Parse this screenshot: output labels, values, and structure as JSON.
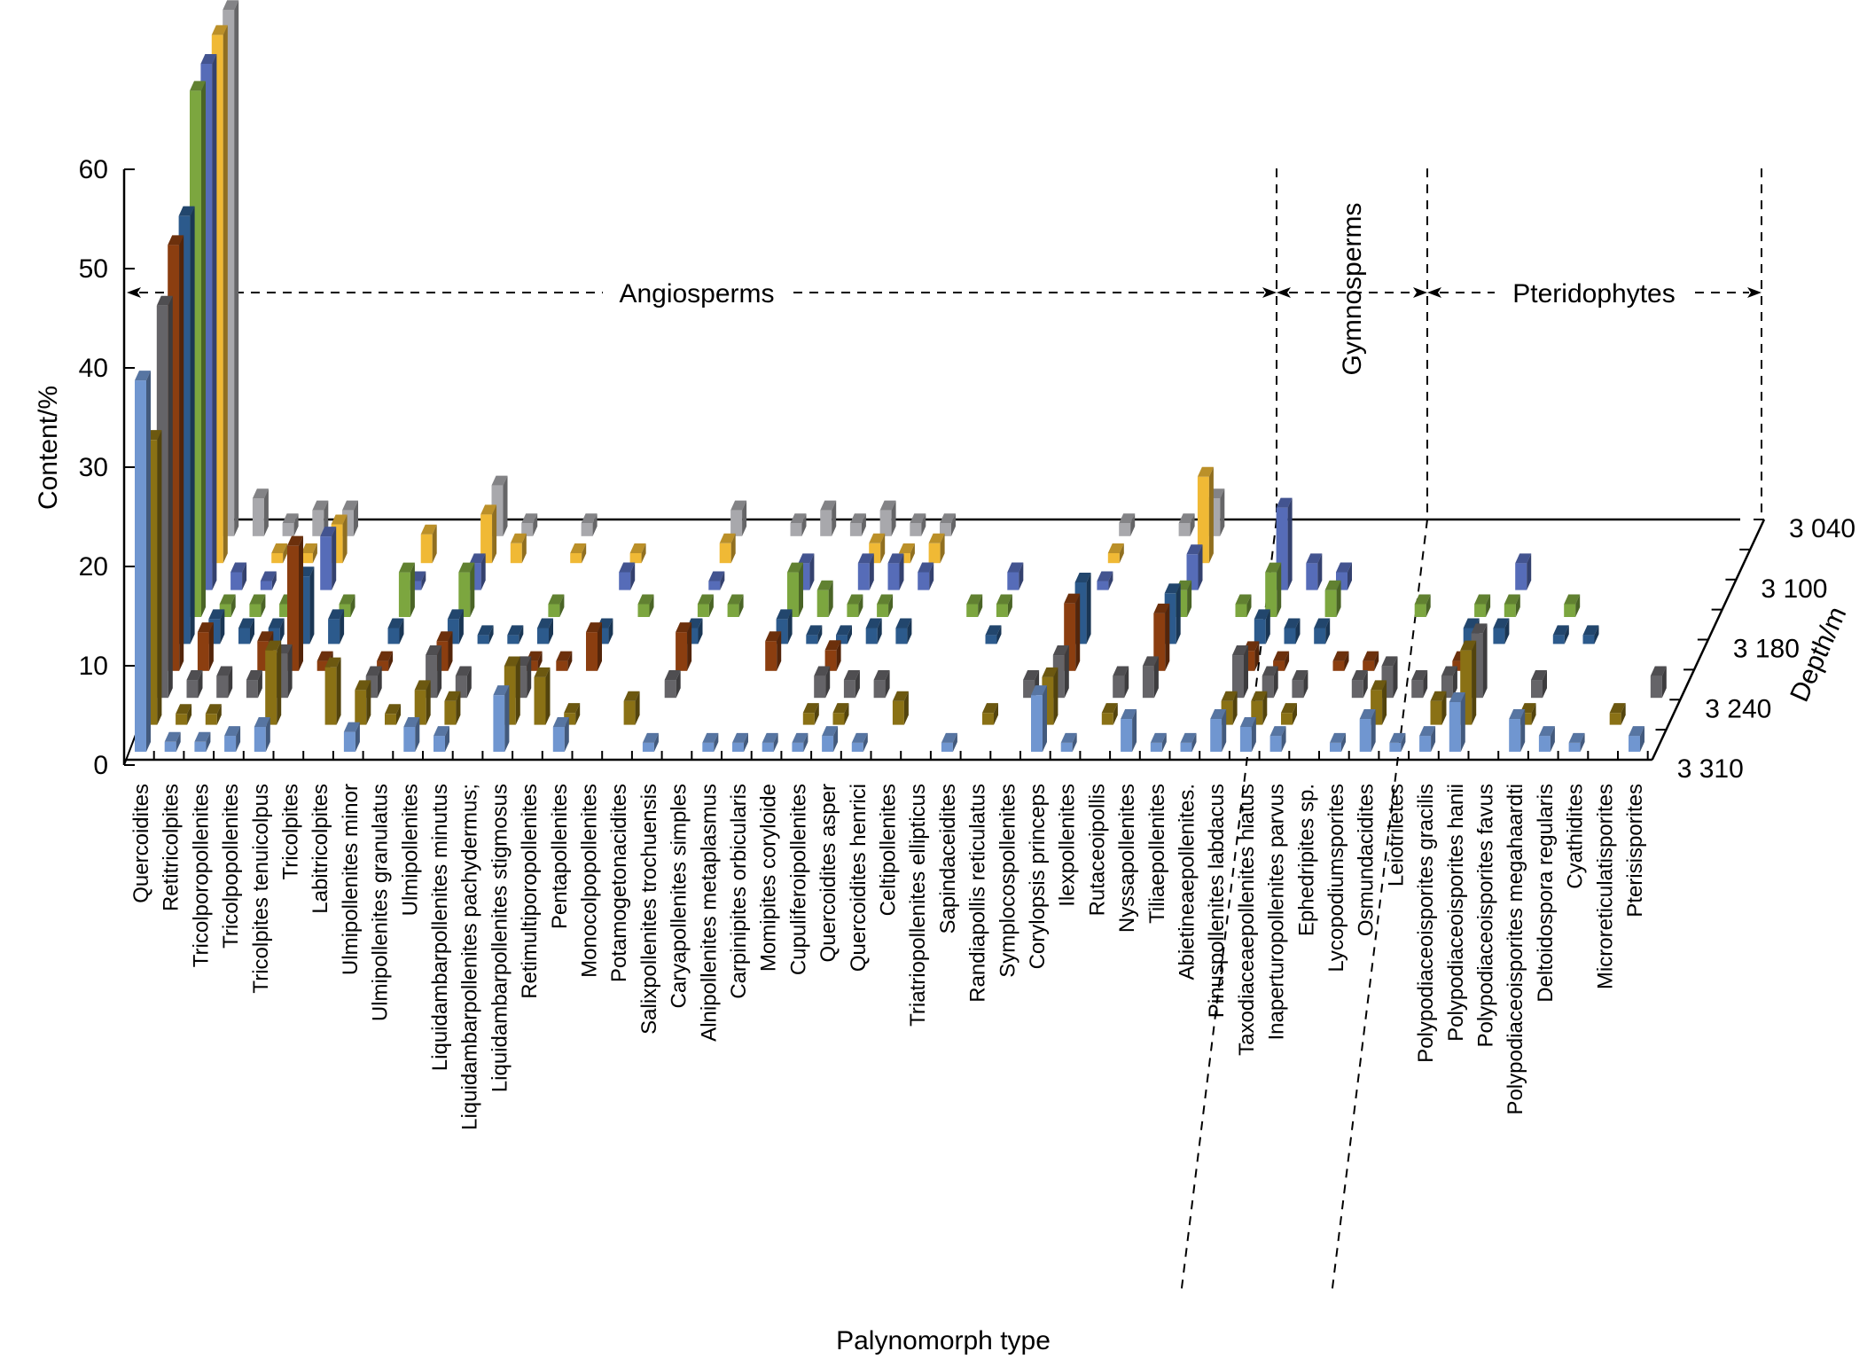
{
  "chart_data": {
    "type": "bar3d",
    "xlabel": "Palynomorph type",
    "ylabel": "Content/%",
    "zlabel": "Depth/m",
    "ylim": [
      0,
      60
    ],
    "yticks": [
      "0",
      "10",
      "20",
      "30",
      "40",
      "50",
      "60"
    ],
    "depth_tick_labels": [
      "3 040",
      "3 100",
      "3 180",
      "3 240",
      "3 310"
    ],
    "grid": false,
    "categories": [
      "Quercoidites",
      "Retitricolpites",
      "Tricolporopollenites",
      "Tricolpopollenites",
      "Tricolpites tenuicolpus",
      "Tricolpites",
      "Labitricolpites",
      "Ulmipollenites minor",
      "Ulmipollenites granulatus",
      "Ulmipollenites",
      "Liquidambarpollenites minutus",
      "Liquidambarpollenites pachydermus;",
      "Liquidambarpollenites stigmosus",
      "Retimultiporopollenites",
      "Pentapollenites",
      "Monocolpopollenites",
      "Potamogetonacidites",
      "Salixpollenites trochuensis",
      "Caryapollenites simples",
      "Alnipollenites metaplasmus",
      "Carpinipites orbicularis",
      "Momipites coryloide",
      "Cupuliferoipollenites",
      "Quercoidites asper",
      "Quercoidites henrici",
      "Celtipollenites",
      "Triatriopollenites ellipticus",
      "Sapindaceidites",
      "Randiapollis reticulatus",
      "Symplocospollenites",
      "Corylopsis princeps",
      "Ilexpollenites",
      "Rutaceoipollis",
      "Nyssapollenites",
      "Tiliaepollenites",
      "Abietineaepollenites.",
      "Pinuspollenites labdacus",
      "Taxodiaceaepollenites hiatus",
      "Inaperturopollenites parvus",
      "Ephedripites sp.",
      "Lycopodiumsporites",
      "Osmundacidites",
      "Leiotriletes",
      "Polypodiaceoisporites gracilis",
      "Polypodiaceoisporites hanii",
      "Polypodiaceoisporites favus",
      "Polypodiaceoisporites megahaardti",
      "Deltoidospora regularis",
      "Cyathidites",
      "Microreticulatisporites",
      "Pterisisporites"
    ],
    "groups": [
      {
        "label": "Angiosperms",
        "start": 0,
        "end": 34
      },
      {
        "label": "Gymnosperms",
        "start": 35,
        "end": 39
      },
      {
        "label": "Pteridophytes",
        "start": 40,
        "end": 50
      }
    ],
    "series_order": "front-to-back (deepest sample in front)",
    "series": [
      {
        "color": "#7096d0",
        "values": [
          37.4,
          1,
          1,
          1.6,
          2.5,
          0,
          0,
          2,
          0,
          2.5,
          1.6,
          0,
          5.7,
          0,
          2.5,
          0,
          0,
          0.9,
          0,
          0.9,
          0.9,
          0.9,
          0.9,
          1.6,
          0.9,
          0,
          0,
          0.9,
          0,
          0,
          5.7,
          0.9,
          0,
          3.3,
          0.9,
          0.9,
          3.3,
          2.5,
          1.6,
          0,
          0.9,
          3.3,
          0.9,
          1.6,
          5,
          0,
          3.3,
          1.6,
          0.9,
          0,
          1.6
        ]
      },
      {
        "color": "#8a7115",
        "values": [
          28.7,
          1.1,
          1.1,
          0,
          7.5,
          0,
          5.8,
          3.5,
          1.1,
          3.5,
          2.4,
          0,
          5.9,
          4.8,
          1.2,
          0,
          2.4,
          0,
          0,
          0,
          0,
          0,
          1.2,
          1.2,
          0,
          2.4,
          0,
          0,
          1.2,
          0,
          4.8,
          0,
          1.2,
          0,
          0,
          0,
          2.4,
          2.4,
          1.2,
          0,
          0,
          3.5,
          0,
          2.4,
          7.5,
          0,
          1.2,
          0,
          0,
          1.2,
          0
        ]
      },
      {
        "color": "#656468",
        "values": [
          39.5,
          1.8,
          2.2,
          1.8,
          4.4,
          0,
          0,
          2.2,
          0,
          4.3,
          2.2,
          0,
          3.2,
          0,
          0,
          0,
          0,
          1.8,
          0,
          0,
          0,
          0,
          2.2,
          1.8,
          1.8,
          0,
          0,
          0,
          0,
          1.8,
          4.3,
          0,
          2.2,
          3.2,
          0,
          0,
          4.3,
          2.2,
          1.8,
          0,
          1.8,
          3.2,
          1.8,
          2.2,
          6.5,
          0,
          1.8,
          0,
          0,
          0,
          2.2
        ]
      },
      {
        "color": "#8b3e10",
        "values": [
          42.9,
          3.9,
          0,
          3,
          12.6,
          1,
          0,
          1,
          0,
          3,
          0,
          0,
          1,
          1,
          3.9,
          0,
          0,
          3.9,
          0,
          0,
          3,
          0,
          2.1,
          0,
          0,
          0,
          0,
          0,
          0,
          0,
          6.8,
          0,
          0,
          5.8,
          0,
          0,
          2,
          1,
          0,
          1,
          1,
          0,
          0,
          1,
          0,
          0,
          0,
          0,
          0,
          0,
          0
        ]
      },
      {
        "color": "#2c5a8c",
        "values": [
          43.1,
          2.5,
          1.6,
          1.6,
          6.8,
          2.5,
          0,
          1.6,
          0,
          2.5,
          0.9,
          0.9,
          1.6,
          0,
          1.6,
          0,
          0,
          1.6,
          0,
          0,
          2.5,
          0.9,
          0.9,
          1.6,
          1.6,
          0,
          0,
          0.9,
          0,
          0,
          6.2,
          0,
          0,
          5.1,
          0,
          0,
          2.5,
          1.6,
          1.6,
          0,
          0,
          0,
          0,
          1.6,
          1.6,
          0,
          0.9,
          0.9,
          0,
          0,
          0
        ]
      },
      {
        "color": "#7ca63f",
        "values": [
          53,
          1.3,
          1.3,
          1.3,
          0,
          1.3,
          0,
          4.5,
          0,
          4.5,
          0,
          0,
          1.3,
          0,
          0,
          1.3,
          0,
          1.3,
          1.3,
          0,
          4.5,
          2.7,
          1.3,
          1.3,
          0,
          0,
          1.3,
          1.3,
          0,
          0,
          0,
          0,
          0,
          2.7,
          0,
          1.3,
          4.5,
          0,
          2.7,
          0,
          0,
          1.3,
          0,
          1.3,
          1.3,
          0,
          1.3,
          0,
          0,
          0,
          0
        ]
      },
      {
        "color": "#566cb8",
        "values": [
          53,
          1.8,
          0.9,
          0,
          5.4,
          0,
          0,
          0.9,
          0,
          2.7,
          0,
          0,
          0,
          0,
          1.8,
          0,
          0,
          0.9,
          0,
          0,
          2.7,
          0,
          2.7,
          2.7,
          1.8,
          0,
          0,
          1.8,
          0,
          0,
          0.9,
          0,
          0,
          3.6,
          0,
          0,
          8.3,
          2.7,
          1.8,
          0,
          0,
          0,
          0,
          0,
          2.7,
          0,
          0,
          0,
          0,
          0,
          0
        ]
      },
      {
        "color": "#f0b935",
        "values": [
          53.2,
          0,
          1,
          1,
          3.9,
          0,
          0,
          2.9,
          0,
          4.9,
          2,
          0,
          1,
          0,
          1,
          0,
          0,
          2,
          0,
          0,
          0,
          0,
          2,
          1,
          2,
          0,
          0,
          0,
          0,
          0,
          1,
          0,
          0,
          8.7,
          0,
          0,
          0,
          0,
          0,
          0,
          0,
          0,
          0,
          0,
          0,
          0,
          0,
          0,
          0,
          0,
          0
        ]
      },
      {
        "color": "#a8a8ac",
        "values": [
          53,
          3.8,
          1.3,
          2.6,
          2.6,
          0,
          0,
          0,
          0,
          5.1,
          1.3,
          0,
          1.3,
          0,
          0,
          0,
          0,
          2.6,
          0,
          1.3,
          2.6,
          1.3,
          2.6,
          1.3,
          1.3,
          0,
          0,
          0,
          0,
          0,
          1.3,
          0,
          1.3,
          3.8,
          0,
          0,
          0,
          0,
          0,
          0,
          0,
          0,
          0,
          0,
          0,
          0,
          0,
          0,
          0,
          0,
          0
        ]
      }
    ]
  }
}
